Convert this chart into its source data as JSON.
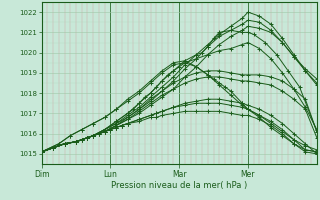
{
  "xlabel": "Pression niveau de la mer( hPa )",
  "bg_color": "#c8e8d8",
  "line_color": "#1a5c1a",
  "axis_color": "#1a5c1a",
  "text_color": "#1a5c1a",
  "xlim": [
    0,
    96
  ],
  "ylim": [
    1014.5,
    1022.5
  ],
  "yticks": [
    1015,
    1016,
    1017,
    1018,
    1019,
    1020,
    1021,
    1022
  ],
  "xtick_labels": [
    "Dim",
    "Lun",
    "Mar",
    "Mer"
  ],
  "xtick_pos": [
    0,
    24,
    48,
    72
  ],
  "vline_pos": [
    0,
    24,
    72
  ],
  "lines": [
    {
      "x": [
        0,
        4,
        8,
        12,
        16,
        18,
        22,
        26,
        30,
        34,
        38,
        42,
        46,
        50,
        54,
        58,
        62,
        66,
        70,
        72,
        76,
        80,
        84,
        88,
        92,
        96
      ],
      "y": [
        1015.1,
        1015.3,
        1015.5,
        1015.6,
        1015.8,
        1015.9,
        1016.1,
        1016.4,
        1016.7,
        1017.0,
        1017.4,
        1017.8,
        1018.2,
        1018.8,
        1019.3,
        1019.9,
        1020.4,
        1020.8,
        1021.1,
        1021.3,
        1021.2,
        1021.0,
        1020.5,
        1019.8,
        1019.2,
        1018.7
      ]
    },
    {
      "x": [
        0,
        4,
        8,
        12,
        16,
        18,
        22,
        26,
        30,
        34,
        38,
        42,
        46,
        50,
        54,
        58,
        62,
        66,
        70,
        72,
        76,
        80,
        84,
        88,
        92,
        96
      ],
      "y": [
        1015.1,
        1015.3,
        1015.5,
        1015.6,
        1015.8,
        1015.9,
        1016.2,
        1016.5,
        1016.8,
        1017.2,
        1017.6,
        1018.1,
        1018.6,
        1019.2,
        1019.7,
        1020.3,
        1020.8,
        1021.1,
        1021.4,
        1021.6,
        1021.5,
        1021.1,
        1020.5,
        1019.8,
        1019.1,
        1018.5
      ]
    },
    {
      "x": [
        0,
        4,
        8,
        12,
        16,
        18,
        22,
        26,
        30,
        34,
        38,
        42,
        46,
        50,
        54,
        58,
        62,
        66,
        70,
        72,
        76,
        80,
        84,
        88,
        92,
        96
      ],
      "y": [
        1015.1,
        1015.3,
        1015.5,
        1015.6,
        1015.8,
        1015.9,
        1016.2,
        1016.5,
        1016.9,
        1017.3,
        1017.8,
        1018.3,
        1018.8,
        1019.4,
        1019.9,
        1020.4,
        1020.9,
        1021.3,
        1021.7,
        1022.0,
        1021.8,
        1021.4,
        1020.7,
        1019.9,
        1019.1,
        1018.4
      ]
    },
    {
      "x": [
        0,
        4,
        8,
        12,
        16,
        18,
        22,
        26,
        30,
        34,
        38,
        42,
        46,
        50,
        54,
        56,
        58,
        60,
        62,
        66,
        70,
        72,
        74,
        78,
        82,
        86,
        90,
        96
      ],
      "y": [
        1015.1,
        1015.3,
        1015.5,
        1015.6,
        1015.8,
        1015.9,
        1016.2,
        1016.6,
        1017.0,
        1017.5,
        1018.0,
        1018.6,
        1019.1,
        1019.6,
        1019.9,
        1020.0,
        1020.3,
        1020.7,
        1021.0,
        1021.1,
        1021.0,
        1021.0,
        1020.9,
        1020.5,
        1019.9,
        1019.1,
        1018.3,
        1016.1
      ]
    },
    {
      "x": [
        0,
        4,
        8,
        12,
        16,
        18,
        22,
        26,
        30,
        32,
        34,
        36,
        38,
        40,
        42,
        44,
        46,
        48,
        50,
        54,
        58,
        62,
        66,
        70,
        72,
        76,
        80,
        84,
        88,
        92,
        96
      ],
      "y": [
        1015.1,
        1015.3,
        1015.5,
        1015.6,
        1015.8,
        1015.9,
        1016.2,
        1016.6,
        1017.0,
        1017.2,
        1017.5,
        1017.8,
        1018.0,
        1018.3,
        1018.6,
        1018.9,
        1019.1,
        1019.3,
        1019.5,
        1019.7,
        1019.9,
        1020.1,
        1020.2,
        1020.4,
        1020.5,
        1020.2,
        1019.7,
        1019.0,
        1018.2,
        1017.3,
        1016.2
      ]
    },
    {
      "x": [
        0,
        4,
        8,
        12,
        16,
        18,
        22,
        26,
        30,
        34,
        38,
        42,
        46,
        50,
        54,
        58,
        62,
        66,
        70,
        72,
        76,
        80,
        84,
        88,
        92,
        96
      ],
      "y": [
        1015.1,
        1015.3,
        1015.5,
        1015.6,
        1015.8,
        1015.9,
        1016.1,
        1016.4,
        1016.8,
        1017.2,
        1017.7,
        1018.1,
        1018.5,
        1018.8,
        1019.0,
        1019.1,
        1019.1,
        1019.0,
        1018.9,
        1018.9,
        1018.9,
        1018.8,
        1018.6,
        1018.2,
        1017.7,
        1016.1
      ]
    },
    {
      "x": [
        0,
        4,
        8,
        12,
        16,
        18,
        22,
        26,
        30,
        34,
        38,
        42,
        46,
        50,
        54,
        58,
        62,
        66,
        70,
        72,
        76,
        80,
        84,
        88,
        92,
        96
      ],
      "y": [
        1015.1,
        1015.3,
        1015.5,
        1015.6,
        1015.8,
        1015.9,
        1016.1,
        1016.4,
        1016.7,
        1017.1,
        1017.5,
        1017.9,
        1018.2,
        1018.5,
        1018.7,
        1018.8,
        1018.8,
        1018.7,
        1018.6,
        1018.6,
        1018.5,
        1018.4,
        1018.1,
        1017.7,
        1017.2,
        1015.8
      ]
    },
    {
      "x": [
        0,
        4,
        8,
        12,
        14,
        16,
        18,
        20,
        22,
        24,
        26,
        28,
        30,
        34,
        38,
        40,
        42,
        46,
        50,
        54,
        58,
        62,
        66,
        70,
        72,
        76,
        80,
        84,
        88,
        92,
        96
      ],
      "y": [
        1015.1,
        1015.3,
        1015.5,
        1015.6,
        1015.7,
        1015.8,
        1015.9,
        1016.0,
        1016.1,
        1016.2,
        1016.3,
        1016.4,
        1016.5,
        1016.7,
        1016.9,
        1017.0,
        1017.1,
        1017.3,
        1017.5,
        1017.6,
        1017.7,
        1017.7,
        1017.6,
        1017.5,
        1017.4,
        1017.2,
        1016.9,
        1016.5,
        1016.0,
        1015.5,
        1015.0
      ]
    },
    {
      "x": [
        0,
        4,
        8,
        12,
        14,
        16,
        18,
        20,
        22,
        24,
        26,
        28,
        30,
        34,
        38,
        40,
        42,
        46,
        50,
        54,
        58,
        62,
        66,
        70,
        72,
        76,
        80,
        84,
        88,
        92,
        96
      ],
      "y": [
        1015.1,
        1015.3,
        1015.5,
        1015.6,
        1015.7,
        1015.8,
        1015.9,
        1016.0,
        1016.1,
        1016.2,
        1016.3,
        1016.4,
        1016.5,
        1016.7,
        1016.9,
        1017.0,
        1017.1,
        1017.3,
        1017.4,
        1017.5,
        1017.5,
        1017.5,
        1017.4,
        1017.3,
        1017.2,
        1016.9,
        1016.6,
        1016.2,
        1015.7,
        1015.2,
        1015.1
      ]
    },
    {
      "x": [
        0,
        4,
        8,
        12,
        14,
        16,
        18,
        20,
        22,
        24,
        26,
        28,
        30,
        34,
        38,
        40,
        42,
        46,
        50,
        54,
        58,
        62,
        66,
        70,
        72,
        76,
        80,
        84,
        88,
        92,
        96
      ],
      "y": [
        1015.1,
        1015.3,
        1015.5,
        1015.6,
        1015.7,
        1015.8,
        1015.9,
        1016.0,
        1016.1,
        1016.2,
        1016.3,
        1016.4,
        1016.5,
        1016.6,
        1016.8,
        1016.8,
        1016.9,
        1017.0,
        1017.1,
        1017.1,
        1017.1,
        1017.1,
        1017.0,
        1016.9,
        1016.9,
        1016.7,
        1016.4,
        1016.0,
        1015.5,
        1015.1,
        1015.0
      ]
    },
    {
      "x": [
        0,
        6,
        10,
        14,
        18,
        22,
        26,
        30,
        34,
        38,
        42,
        46,
        50,
        54,
        58,
        62,
        66,
        70,
        72,
        76,
        80,
        84,
        88,
        92,
        96
      ],
      "y": [
        1015.1,
        1015.5,
        1015.9,
        1016.2,
        1016.5,
        1016.8,
        1017.2,
        1017.6,
        1018.0,
        1018.5,
        1019.0,
        1019.4,
        1019.5,
        1019.3,
        1018.9,
        1018.4,
        1017.9,
        1017.4,
        1017.2,
        1016.9,
        1016.5,
        1016.1,
        1015.7,
        1015.4,
        1015.2
      ]
    },
    {
      "x": [
        0,
        6,
        10,
        14,
        18,
        22,
        26,
        30,
        34,
        38,
        42,
        46,
        50,
        54,
        58,
        60,
        62,
        64,
        66,
        70,
        72,
        76,
        80,
        84,
        88,
        92,
        96
      ],
      "y": [
        1015.1,
        1015.5,
        1015.9,
        1016.2,
        1016.5,
        1016.8,
        1017.2,
        1017.7,
        1018.1,
        1018.6,
        1019.1,
        1019.5,
        1019.6,
        1019.3,
        1018.9,
        1018.7,
        1018.5,
        1018.3,
        1018.1,
        1017.5,
        1017.2,
        1016.8,
        1016.3,
        1015.9,
        1015.5,
        1015.2,
        1015.1
      ]
    }
  ],
  "marker": "+",
  "markersize": 2.5,
  "linewidth": 0.7
}
